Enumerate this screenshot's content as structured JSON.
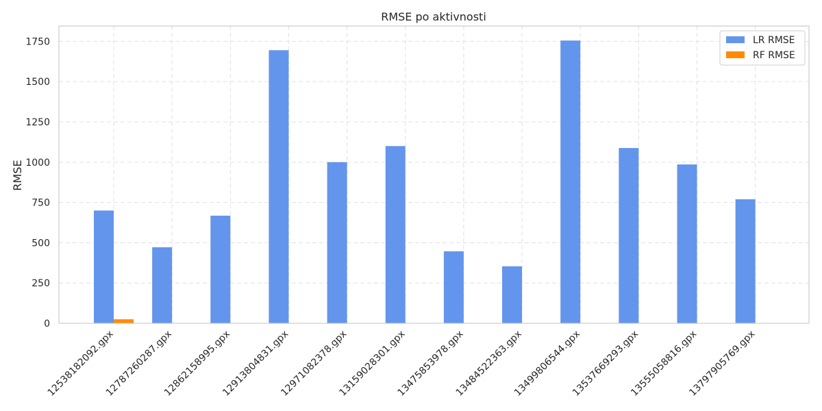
{
  "chart_data": {
    "type": "bar",
    "title": "RMSE po aktivnosti",
    "xlabel": "",
    "ylabel": "RMSE",
    "ylim": [
      0,
      1845
    ],
    "yticks": [
      0,
      250,
      500,
      750,
      1000,
      1250,
      1500,
      1750
    ],
    "grid": true,
    "legend_position": "top-right",
    "categories": [
      "12538182092.gpx",
      "12787260287.gpx",
      "12862158995.gpx",
      "12913804831.gpx",
      "12971082378.gpx",
      "13159028301.gpx",
      "13475853978.gpx",
      "13484522363.gpx",
      "13499806544.gpx",
      "13537669293.gpx",
      "13555058816.gpx",
      "13797905769.gpx"
    ],
    "series": [
      {
        "name": "LR RMSE",
        "color": "#6495ED",
        "values": [
          700,
          472,
          668,
          1695,
          1000,
          1100,
          447,
          354,
          1755,
          1088,
          986,
          770
        ]
      },
      {
        "name": "RF RMSE",
        "color": "#FF8C00",
        "values": [
          25,
          0,
          0,
          0,
          0,
          0,
          0,
          0,
          0,
          0,
          0,
          0
        ]
      }
    ]
  }
}
